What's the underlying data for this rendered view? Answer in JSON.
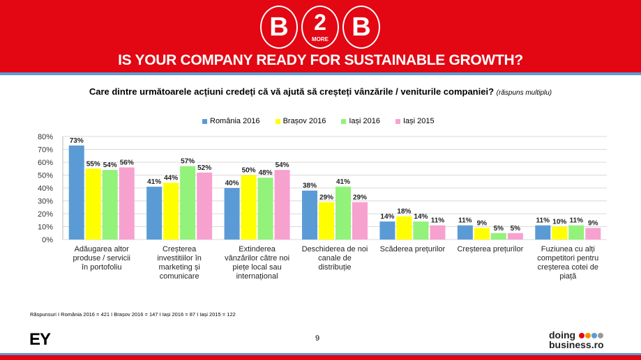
{
  "header": {
    "logo_letters": [
      "B",
      "2",
      "B"
    ],
    "logo_small": "MORE",
    "tagline": "IS YOUR COMPANY READY FOR SUSTAINABLE GROWTH?"
  },
  "question": {
    "text": "Care dintre următoarele acțiuni credeți că vă ajută să creșteți vânzările / veniturile companiei?",
    "note": "(răspuns multiplu)"
  },
  "chart_data": {
    "type": "bar",
    "categories": [
      "Adăugarea altor produse / servicii în portofoliu",
      "Creșterea investitiilor în marketing și comunicare",
      "Extinderea vânzărilor către noi piețe local sau internațional",
      "Deschiderea de noi canale de distribuție",
      "Scăderea prețurilor",
      "Creșterea prețurilor",
      "Fuziunea cu alți competitori pentru creșterea cotei de piață"
    ],
    "series": [
      {
        "name": "România 2016",
        "color": "#5b9bd5",
        "values": [
          73,
          41,
          40,
          38,
          14,
          11,
          11
        ]
      },
      {
        "name": "Brașov 2016",
        "color": "#ffff00",
        "values": [
          55,
          44,
          50,
          29,
          18,
          9,
          10
        ]
      },
      {
        "name": "Iași 2016",
        "color": "#92f27a",
        "values": [
          54,
          57,
          48,
          41,
          14,
          5,
          11
        ]
      },
      {
        "name": "Iași 2015",
        "color": "#f7a1cf",
        "values": [
          56,
          52,
          54,
          29,
          11,
          5,
          9
        ]
      }
    ],
    "yticks": [
      "0%",
      "10%",
      "20%",
      "30%",
      "40%",
      "50%",
      "60%",
      "70%",
      "80%"
    ],
    "ylim": [
      0,
      80
    ],
    "legend": "top",
    "grid": true
  },
  "footer": {
    "respondents": "Răspunsuri I România 2016 = 421 I Brașov 2016 = 147 I Iași 2016 = 87 I Iași 2015 = 122",
    "page": "9",
    "ey": "EY",
    "brand1": "doing",
    "brand2": "business.ro"
  }
}
